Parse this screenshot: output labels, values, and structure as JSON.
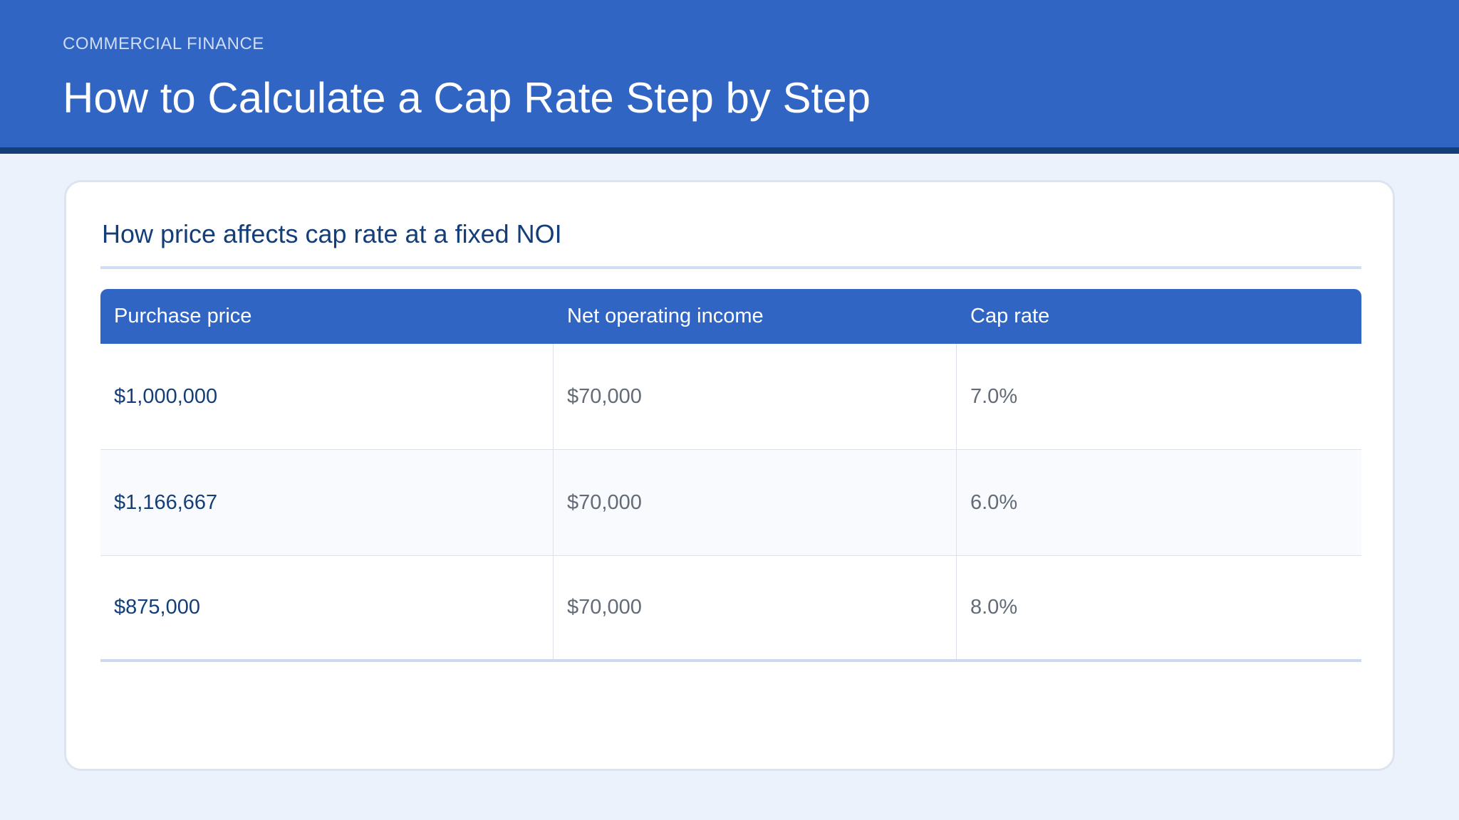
{
  "header": {
    "eyebrow": "COMMERCIAL FINANCE",
    "title": "How to Calculate a Cap Rate Step by Step"
  },
  "card": {
    "title": "How price affects cap rate at a fixed NOI"
  },
  "table": {
    "columns": [
      "Purchase price",
      "Net operating income",
      "Cap rate"
    ],
    "rows": [
      [
        "$1,000,000",
        "$70,000",
        "7.0%"
      ],
      [
        "$1,166,667",
        "$70,000",
        "6.0%"
      ],
      [
        "$875,000",
        "$70,000",
        "8.0%"
      ]
    ]
  },
  "colors": {
    "header_bg": "#3165c3",
    "header_border": "#143e78",
    "page_bg": "#ecf2fc",
    "accent_text": "#143e78"
  }
}
